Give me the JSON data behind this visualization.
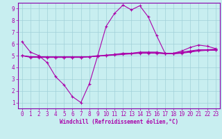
{
  "xlabel": "Windchill (Refroidissement éolien,°C)",
  "bg_color": "#c8eef0",
  "grid_color": "#a0d0d8",
  "line_color": "#aa00aa",
  "spine_color": "#8800aa",
  "xlim": [
    -0.5,
    23.5
  ],
  "ylim": [
    0.5,
    9.5
  ],
  "xticks": [
    0,
    1,
    2,
    3,
    4,
    5,
    6,
    7,
    8,
    9,
    10,
    11,
    12,
    13,
    14,
    15,
    16,
    17,
    18,
    19,
    20,
    21,
    22,
    23
  ],
  "yticks": [
    1,
    2,
    3,
    4,
    5,
    6,
    7,
    8,
    9
  ],
  "hours": [
    0,
    1,
    2,
    3,
    4,
    5,
    6,
    7,
    8,
    9,
    10,
    11,
    12,
    13,
    14,
    15,
    16,
    17,
    18,
    19,
    20,
    21,
    22,
    23
  ],
  "line1": [
    6.2,
    5.3,
    5.0,
    4.4,
    3.2,
    2.5,
    1.5,
    1.0,
    2.6,
    5.0,
    7.5,
    8.6,
    9.3,
    8.9,
    9.25,
    8.3,
    6.7,
    5.2,
    5.2,
    5.4,
    5.7,
    5.9,
    5.8,
    5.6
  ],
  "line2": [
    5.0,
    4.9,
    4.9,
    4.9,
    4.9,
    4.9,
    4.9,
    4.9,
    4.9,
    5.0,
    5.0,
    5.1,
    5.2,
    5.2,
    5.3,
    5.3,
    5.3,
    5.2,
    5.2,
    5.3,
    5.4,
    5.5,
    5.5,
    5.55
  ],
  "line3": [
    5.0,
    4.9,
    4.9,
    4.85,
    4.85,
    4.85,
    4.85,
    4.85,
    4.9,
    4.95,
    5.05,
    5.1,
    5.15,
    5.2,
    5.25,
    5.25,
    5.25,
    5.2,
    5.2,
    5.25,
    5.35,
    5.45,
    5.5,
    5.5
  ],
  "line4": [
    5.0,
    4.85,
    4.85,
    4.85,
    4.85,
    4.85,
    4.85,
    4.85,
    4.9,
    4.95,
    5.0,
    5.05,
    5.1,
    5.15,
    5.2,
    5.2,
    5.2,
    5.15,
    5.15,
    5.2,
    5.3,
    5.4,
    5.45,
    5.45
  ],
  "tick_fontsize": 5.5,
  "xlabel_fontsize": 5.5
}
